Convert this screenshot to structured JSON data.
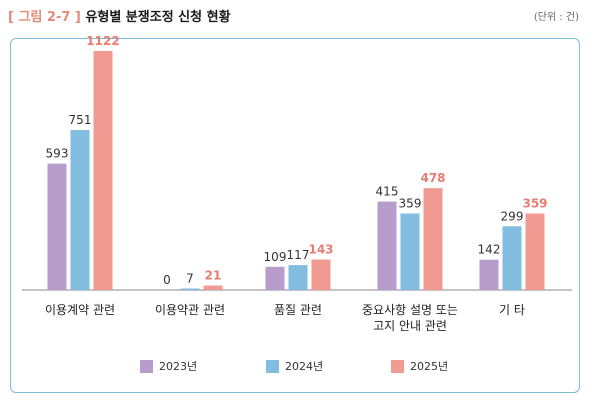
{
  "header": {
    "fig_label": "[ 그림 2-7 ]",
    "title": "유형별 분쟁조정 신청 현황",
    "unit": "(단위 : 건)"
  },
  "colors": {
    "series_2023": "#b79ccc",
    "series_2024": "#82bde0",
    "series_2025": "#f09a92",
    "highlight_label": "#e97c72",
    "frame": "#7fbcd6",
    "axis": "#888888"
  },
  "chart_data": {
    "type": "bar",
    "categories": [
      "이용계약 관련",
      "이용약관 관련",
      "품질 관련",
      "중요사항 설명 또는|고지 안내 관련",
      "기 타"
    ],
    "series": [
      {
        "name": "2023년",
        "values": [
          593,
          0,
          109,
          415,
          142
        ]
      },
      {
        "name": "2024년",
        "values": [
          751,
          7,
          117,
          359,
          299
        ]
      },
      {
        "name": "2025년",
        "values": [
          1122,
          21,
          143,
          478,
          359
        ]
      }
    ],
    "ylim": [
      0,
      1150
    ],
    "grid": false,
    "legend_position": "bottom"
  }
}
